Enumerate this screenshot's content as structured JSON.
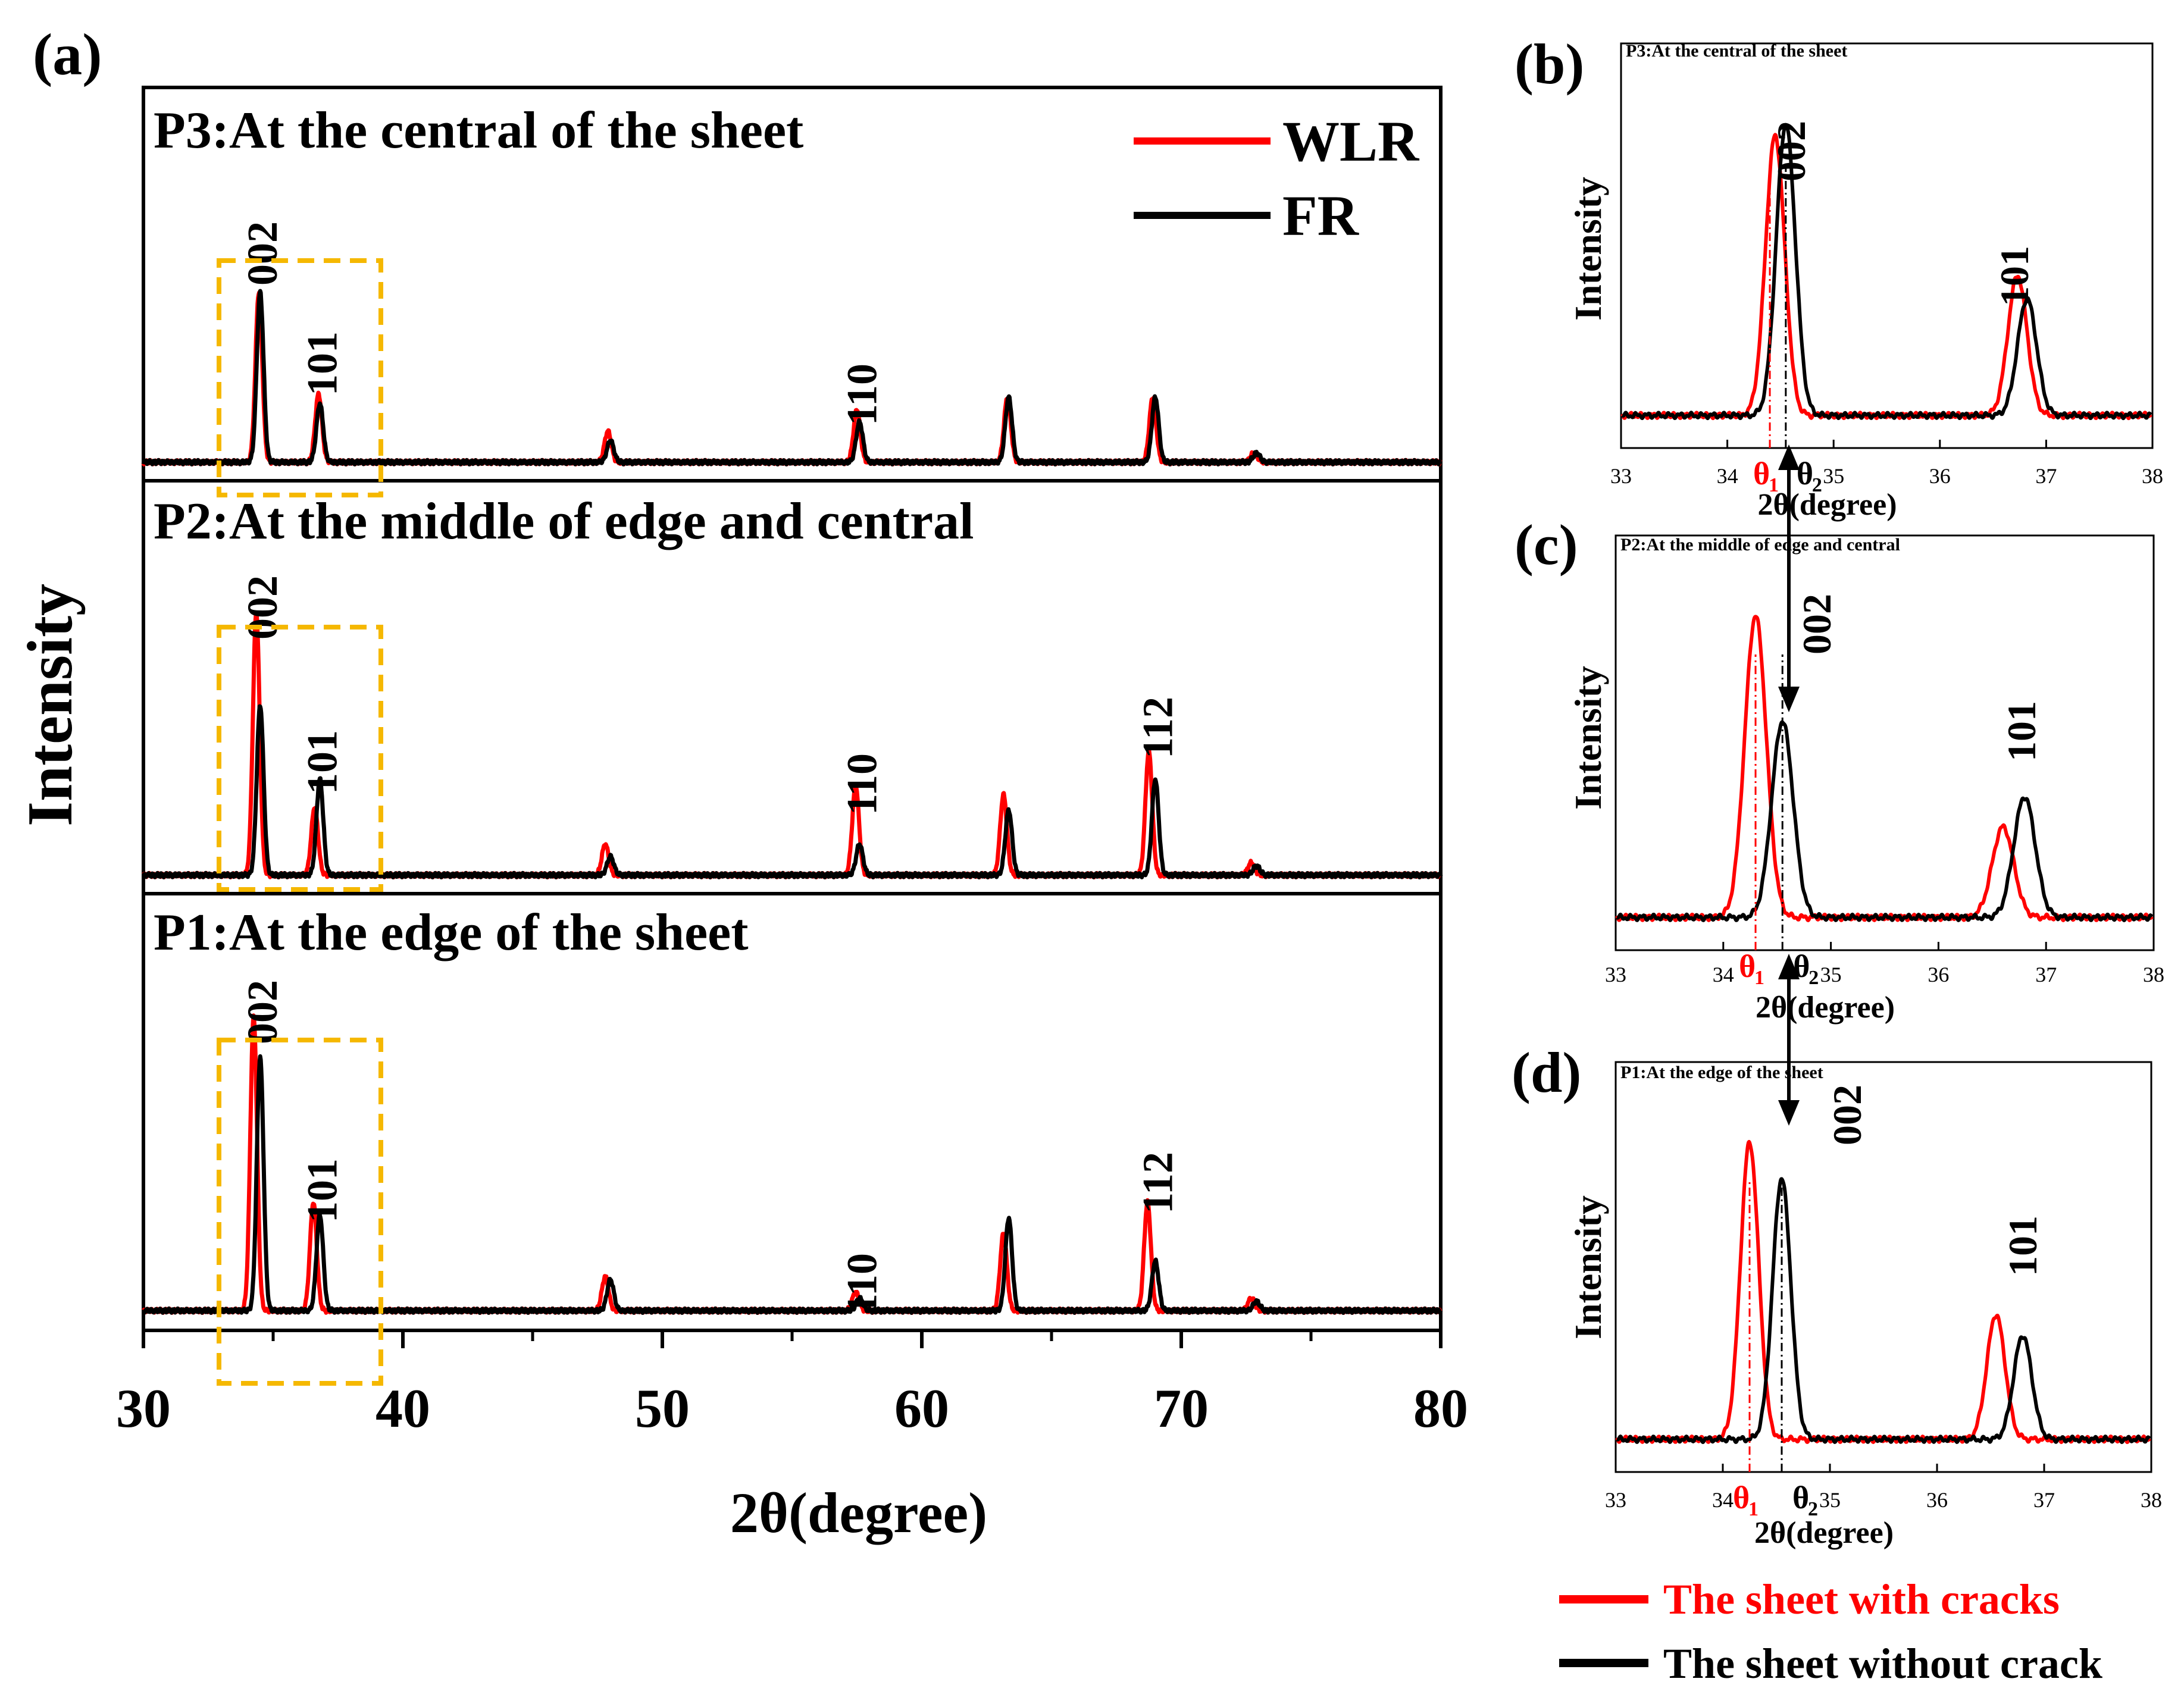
{
  "figure": {
    "panel_a": {
      "label": "(a)",
      "ylabel": "Intensity",
      "xlabel": "2θ(degree)",
      "xticks": [
        "30",
        "40",
        "50",
        "60",
        "70",
        "80"
      ],
      "legend": [
        {
          "name": "WLR",
          "color": "#ff0000"
        },
        {
          "name": "FR",
          "color": "#000000"
        }
      ],
      "subplots": [
        {
          "title": "P3:At the central of the sheet",
          "peak_labels": [
            {
              "hkl": "002",
              "x": 34.5
            },
            {
              "hkl": "101",
              "x": 36.8
            },
            {
              "hkl": "110",
              "x": 57.6
            }
          ]
        },
        {
          "title": "P2:At the middle of edge and central",
          "peak_labels": [
            {
              "hkl": "002",
              "x": 34.5
            },
            {
              "hkl": "101",
              "x": 36.8
            },
            {
              "hkl": "110",
              "x": 57.6
            },
            {
              "hkl": "112",
              "x": 69.0
            }
          ]
        },
        {
          "title": "P1:At the edge of the sheet",
          "peak_labels": [
            {
              "hkl": "002",
              "x": 34.5
            },
            {
              "hkl": "101",
              "x": 36.8
            },
            {
              "hkl": "110",
              "x": 57.6
            },
            {
              "hkl": "112",
              "x": 69.0
            }
          ]
        }
      ]
    },
    "zoom_panels": [
      {
        "label": "(b)",
        "title": "P3:At the central of the sheet",
        "ylabel": "Intensity",
        "xlabel": "2θ(degree)",
        "xticks": [
          "33",
          "34",
          "35",
          "36",
          "37",
          "38"
        ],
        "theta1": "θ",
        "theta1_sub": "1",
        "theta2": "θ",
        "theta2_sub": "2",
        "peak_labels": [
          {
            "hkl": "002"
          },
          {
            "hkl": "101"
          }
        ]
      },
      {
        "label": "(c)",
        "title": "P2:At the middle of edge and central",
        "ylabel": "Intensity",
        "xlabel": "2θ(degree)",
        "xticks": [
          "33",
          "34",
          "35",
          "36",
          "37",
          "38"
        ],
        "theta1": "θ",
        "theta1_sub": "1",
        "theta2": "θ",
        "theta2_sub": "2",
        "peak_labels": [
          {
            "hkl": "002"
          },
          {
            "hkl": "101"
          }
        ]
      },
      {
        "label": "(d)",
        "title": "P1:At the edge of the sheet",
        "ylabel": "Intensity",
        "xlabel": "2θ(degree)",
        "xticks": [
          "33",
          "34",
          "35",
          "36",
          "37",
          "38"
        ],
        "theta1": "θ",
        "theta1_sub": "1",
        "theta2": "θ",
        "theta2_sub": "2",
        "peak_labels": [
          {
            "hkl": "002"
          },
          {
            "hkl": "101"
          }
        ]
      }
    ],
    "bottom_legend": [
      {
        "name": "The sheet with cracks",
        "color": "#ff0000"
      },
      {
        "name": "The sheet without crack",
        "color": "#000000"
      }
    ],
    "highlight_color": "#f5b800"
  },
  "chart_data": [
    {
      "type": "line",
      "panel": "(a)",
      "title": "",
      "xlabel": "2θ(degree)",
      "ylabel": "Intensity",
      "xlim": [
        30,
        80
      ],
      "stacked_subplots": [
        "P3:At the central of the sheet",
        "P2:At the middle of edge and central",
        "P1:At the edge of the sheet"
      ],
      "series": [
        {
          "name": "WLR",
          "subplot": "P3",
          "peaks": [
            {
              "x": 34.45,
              "h": 0.55
            },
            {
              "x": 36.75,
              "h": 0.22
            },
            {
              "x": 47.9,
              "h": 0.1
            },
            {
              "x": 57.5,
              "h": 0.17
            },
            {
              "x": 63.3,
              "h": 0.21
            },
            {
              "x": 68.9,
              "h": 0.21
            },
            {
              "x": 72.8,
              "h": 0.03
            }
          ]
        },
        {
          "name": "FR",
          "subplot": "P3",
          "peaks": [
            {
              "x": 34.5,
              "h": 0.55
            },
            {
              "x": 36.8,
              "h": 0.19
            },
            {
              "x": 48.0,
              "h": 0.07
            },
            {
              "x": 57.6,
              "h": 0.13
            },
            {
              "x": 63.35,
              "h": 0.21
            },
            {
              "x": 69.0,
              "h": 0.21
            },
            {
              "x": 72.9,
              "h": 0.03
            }
          ]
        },
        {
          "name": "WLR",
          "subplot": "P2",
          "peaks": [
            {
              "x": 34.35,
              "h": 0.85
            },
            {
              "x": 36.6,
              "h": 0.22
            },
            {
              "x": 47.8,
              "h": 0.1
            },
            {
              "x": 57.45,
              "h": 0.29
            },
            {
              "x": 63.15,
              "h": 0.26
            },
            {
              "x": 68.75,
              "h": 0.4
            },
            {
              "x": 72.7,
              "h": 0.04
            }
          ]
        },
        {
          "name": "FR",
          "subplot": "P2",
          "peaks": [
            {
              "x": 34.5,
              "h": 0.55
            },
            {
              "x": 36.8,
              "h": 0.31
            },
            {
              "x": 48.0,
              "h": 0.06
            },
            {
              "x": 57.6,
              "h": 0.1
            },
            {
              "x": 63.35,
              "h": 0.21
            },
            {
              "x": 69.0,
              "h": 0.31
            },
            {
              "x": 72.9,
              "h": 0.03
            }
          ]
        },
        {
          "name": "WLR",
          "subplot": "P1",
          "peaks": [
            {
              "x": 34.25,
              "h": 0.95
            },
            {
              "x": 36.55,
              "h": 0.35
            },
            {
              "x": 47.8,
              "h": 0.11
            },
            {
              "x": 57.45,
              "h": 0.06
            },
            {
              "x": 63.15,
              "h": 0.25
            },
            {
              "x": 68.7,
              "h": 0.35
            },
            {
              "x": 72.7,
              "h": 0.04
            }
          ]
        },
        {
          "name": "FR",
          "subplot": "P1",
          "peaks": [
            {
              "x": 34.5,
              "h": 0.82
            },
            {
              "x": 36.8,
              "h": 0.31
            },
            {
              "x": 48.0,
              "h": 0.1
            },
            {
              "x": 57.6,
              "h": 0.04
            },
            {
              "x": 63.35,
              "h": 0.3
            },
            {
              "x": 69.0,
              "h": 0.16
            },
            {
              "x": 72.9,
              "h": 0.03
            }
          ]
        }
      ]
    },
    {
      "type": "line",
      "panel": "(b)",
      "title": "P3:At the central of the sheet",
      "xlabel": "2θ(degree)",
      "ylabel": "Intensity",
      "xlim": [
        33,
        38
      ],
      "series": [
        {
          "name": "The sheet with cracks",
          "peaks": [
            {
              "x": 34.45,
              "h": 0.96
            },
            {
              "x": 36.73,
              "h": 0.48
            }
          ]
        },
        {
          "name": "The sheet without crack",
          "peaks": [
            {
              "x": 34.55,
              "h": 1.0
            },
            {
              "x": 36.82,
              "h": 0.4
            }
          ]
        }
      ]
    },
    {
      "type": "line",
      "panel": "(c)",
      "title": "P2:At the middle of edge and central",
      "xlabel": "2θ(degree)",
      "ylabel": "Intensity",
      "xlim": [
        33,
        38
      ],
      "series": [
        {
          "name": "The sheet with cracks",
          "peaks": [
            {
              "x": 34.3,
              "h": 1.0
            },
            {
              "x": 36.6,
              "h": 0.3
            }
          ]
        },
        {
          "name": "The sheet without crack",
          "peaks": [
            {
              "x": 34.55,
              "h": 0.65
            },
            {
              "x": 36.8,
              "h": 0.4
            }
          ]
        }
      ]
    },
    {
      "type": "line",
      "panel": "(d)",
      "title": "P1:At the edge of the sheet",
      "xlabel": "2θ(degree)",
      "ylabel": "Intensity",
      "xlim": [
        33,
        38
      ],
      "series": [
        {
          "name": "The sheet with cracks",
          "peaks": [
            {
              "x": 34.25,
              "h": 1.0
            },
            {
              "x": 36.55,
              "h": 0.42
            }
          ]
        },
        {
          "name": "The sheet without crack",
          "peaks": [
            {
              "x": 34.55,
              "h": 0.88
            },
            {
              "x": 36.8,
              "h": 0.35
            }
          ]
        }
      ]
    }
  ]
}
